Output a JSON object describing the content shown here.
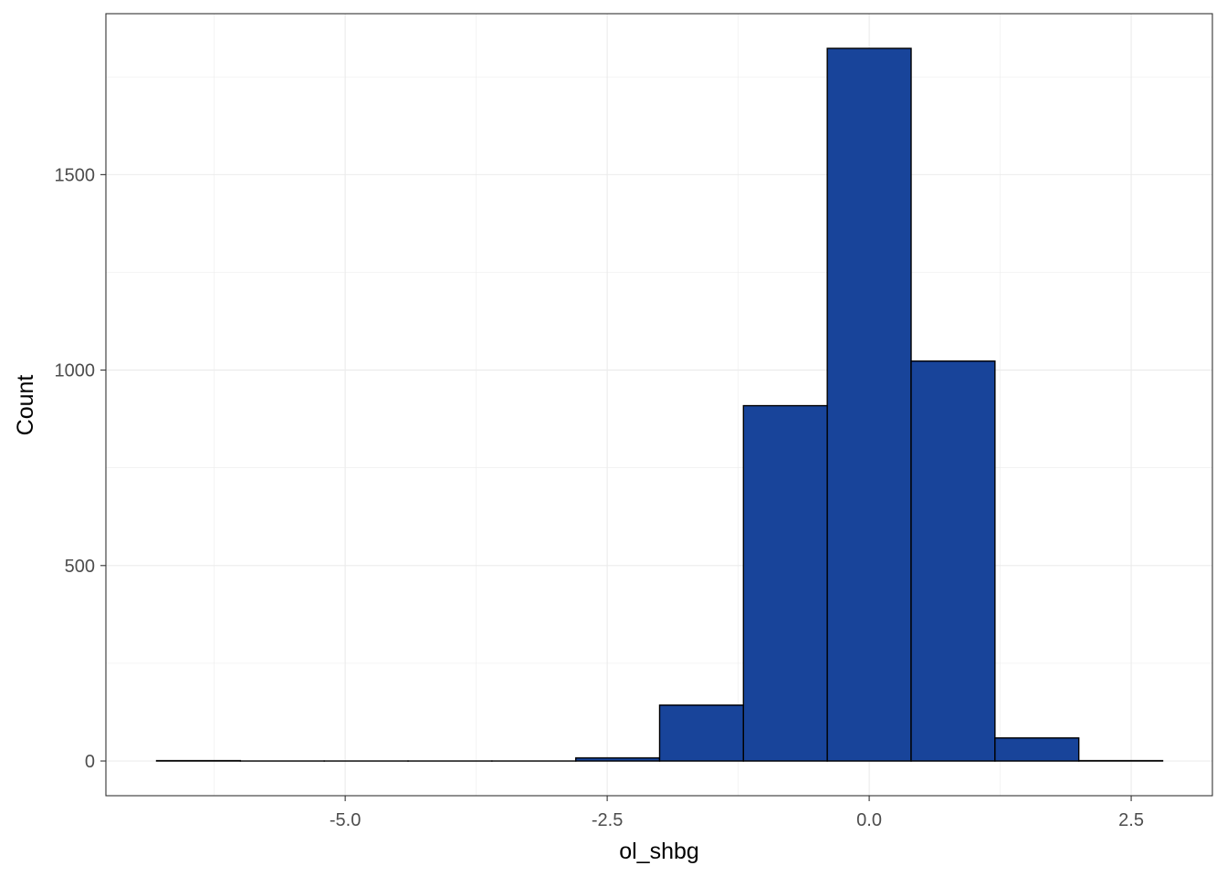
{
  "chart_data": {
    "type": "bar",
    "subtype": "histogram",
    "title": "",
    "xlabel": "ol_shbg",
    "ylabel": "Count",
    "bin_edges": [
      -6.8,
      -6.0,
      -5.2,
      -4.4,
      -3.6,
      -2.8,
      -2.0,
      -1.2,
      -0.4,
      0.4,
      1.2,
      2.0,
      2.8
    ],
    "values": [
      1,
      0,
      0,
      0,
      0,
      8,
      143,
      909,
      1823,
      1023,
      59,
      1
    ],
    "xlim": [
      -6.8,
      2.8
    ],
    "ylim": [
      0,
      1823
    ],
    "x_ticks": [
      -5.0,
      -2.5,
      0.0,
      2.5
    ],
    "x_tick_labels": [
      "-5.0",
      "-2.5",
      "0.0",
      "2.5"
    ],
    "y_ticks": [
      0,
      500,
      1000,
      1500
    ],
    "y_tick_labels": [
      "0",
      "500",
      "1000",
      "1500"
    ],
    "grid": true,
    "legend": "none",
    "colors": {
      "bar_fill": "#18449A",
      "bar_outline": "#000000",
      "grid": "#EBEBEB",
      "panel_border": "#333333",
      "background": "#FFFFFF"
    }
  }
}
